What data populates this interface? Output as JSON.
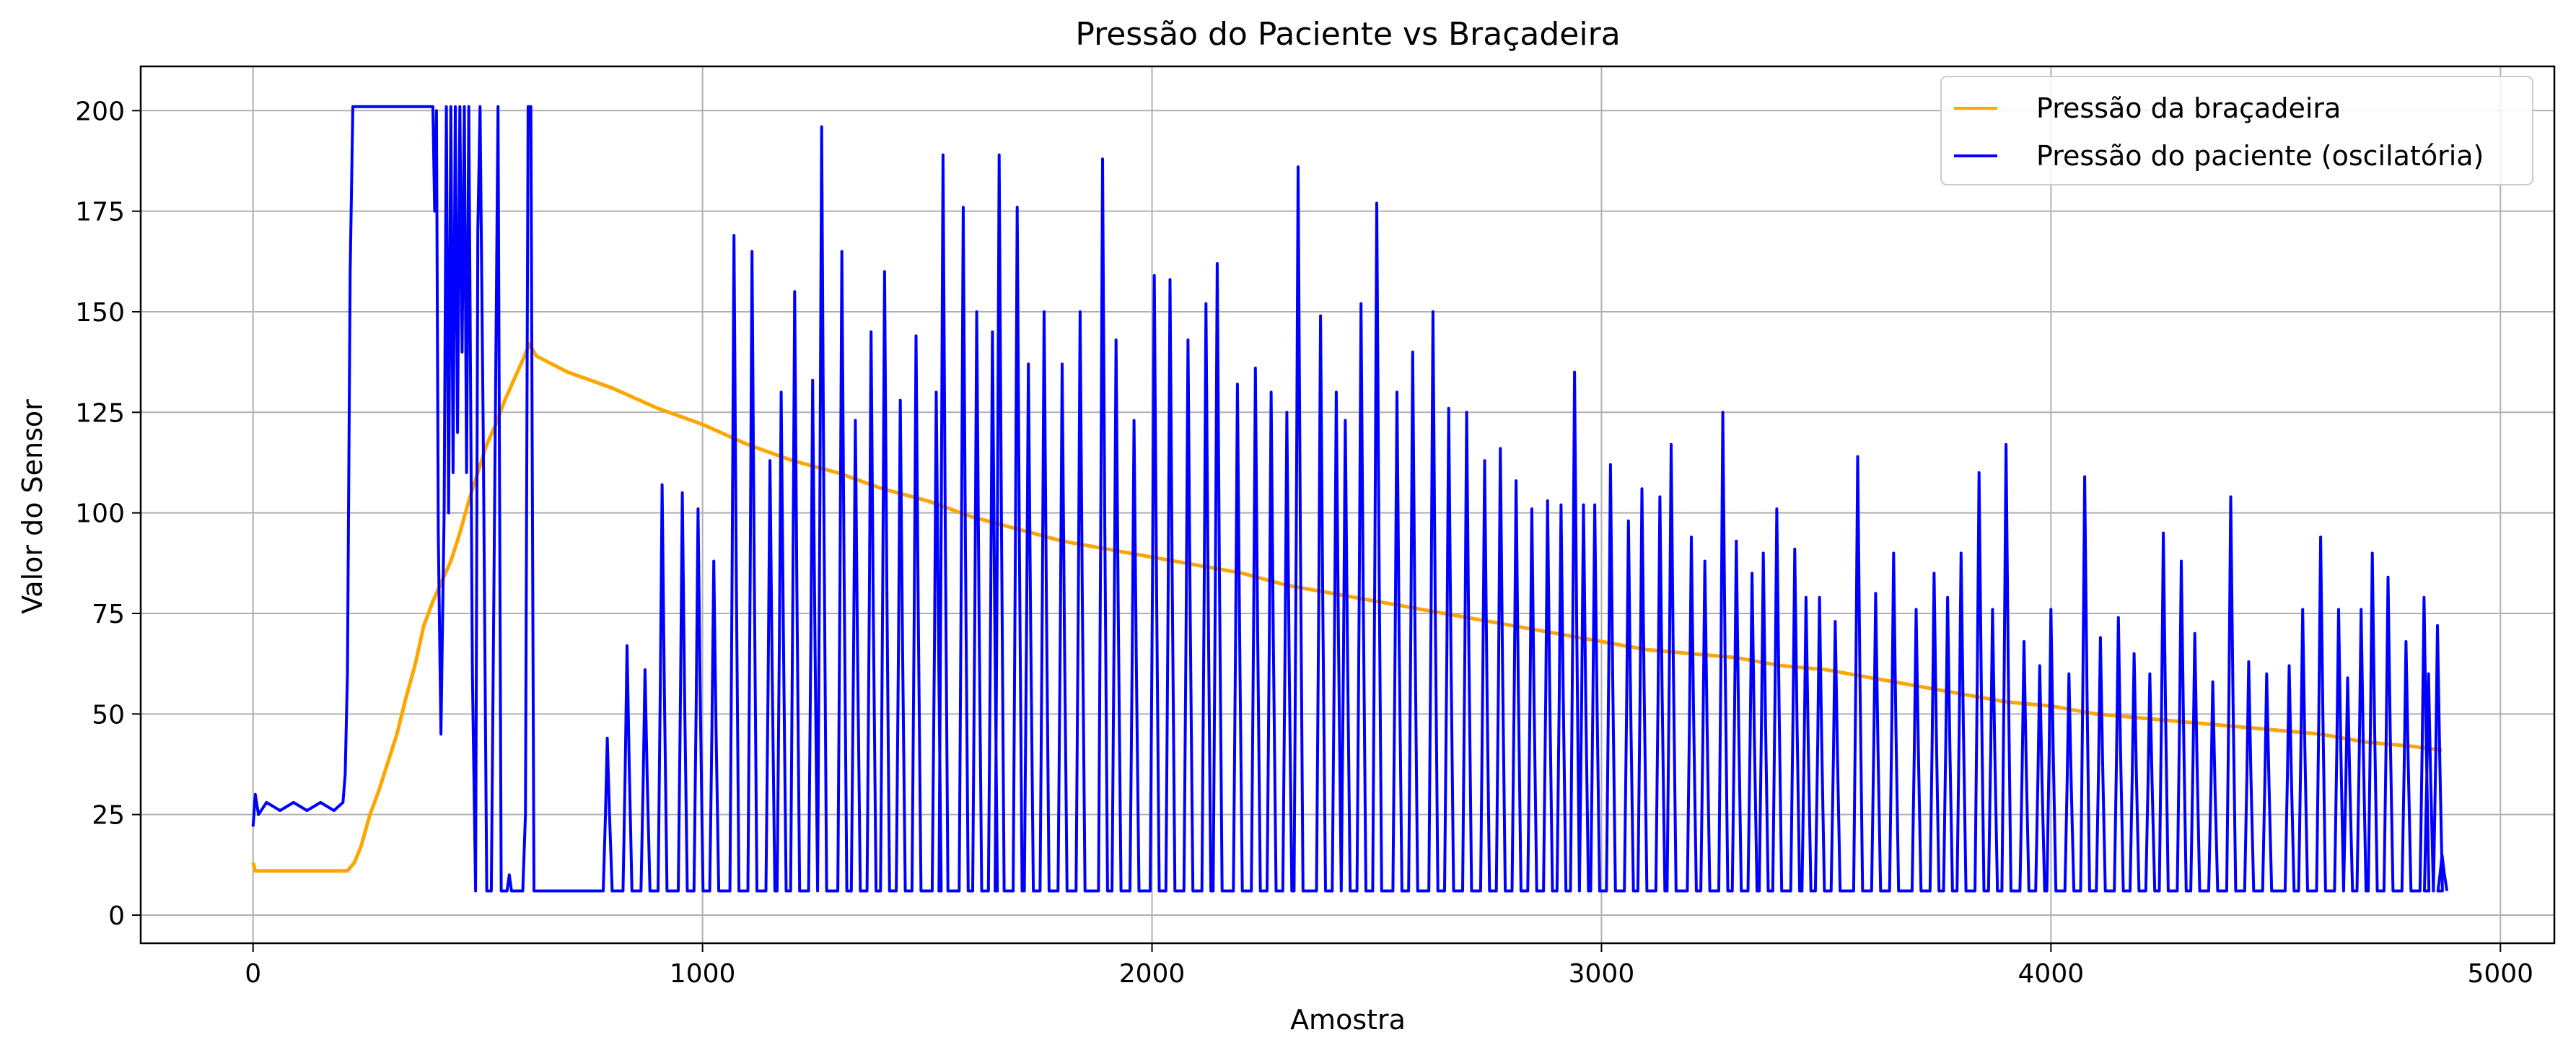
{
  "chart_data": {
    "type": "line",
    "title": "Pressão do Paciente vs Braçadeira",
    "xlabel": "Amostra",
    "ylabel": "Valor do Sensor",
    "xlim": [
      -250,
      5120
    ],
    "ylim": [
      -7,
      211
    ],
    "x_ticks": [
      0,
      1000,
      2000,
      3000,
      4000,
      5000
    ],
    "y_ticks": [
      0,
      25,
      50,
      75,
      100,
      125,
      150,
      175,
      200
    ],
    "grid": true,
    "legend": "top-right",
    "series": [
      {
        "name": "Pressão da braçadeira",
        "color": "#ffa500",
        "points": [
          [
            0,
            13
          ],
          [
            5,
            11
          ],
          [
            210,
            11
          ],
          [
            225,
            13
          ],
          [
            240,
            17
          ],
          [
            260,
            25
          ],
          [
            280,
            31
          ],
          [
            300,
            38
          ],
          [
            320,
            45
          ],
          [
            340,
            54
          ],
          [
            360,
            62
          ],
          [
            380,
            72
          ],
          [
            400,
            78
          ],
          [
            420,
            83
          ],
          [
            440,
            88
          ],
          [
            460,
            95
          ],
          [
            480,
            103
          ],
          [
            500,
            110
          ],
          [
            520,
            117
          ],
          [
            540,
            122
          ],
          [
            560,
            128
          ],
          [
            580,
            133
          ],
          [
            600,
            138
          ],
          [
            615,
            142
          ],
          [
            630,
            139
          ],
          [
            700,
            135
          ],
          [
            800,
            131
          ],
          [
            900,
            126
          ],
          [
            1000,
            122
          ],
          [
            1100,
            117
          ],
          [
            1200,
            113
          ],
          [
            1300,
            110
          ],
          [
            1400,
            106
          ],
          [
            1500,
            103
          ],
          [
            1600,
            99
          ],
          [
            1700,
            96
          ],
          [
            1800,
            93
          ],
          [
            1900,
            91
          ],
          [
            2000,
            89
          ],
          [
            2100,
            87
          ],
          [
            2200,
            85
          ],
          [
            2300,
            82
          ],
          [
            2400,
            80
          ],
          [
            2500,
            78
          ],
          [
            2600,
            76
          ],
          [
            2700,
            74
          ],
          [
            2800,
            72
          ],
          [
            2900,
            70
          ],
          [
            3000,
            68
          ],
          [
            3100,
            66
          ],
          [
            3200,
            65
          ],
          [
            3300,
            64
          ],
          [
            3400,
            62
          ],
          [
            3500,
            61
          ],
          [
            3600,
            59
          ],
          [
            3700,
            57
          ],
          [
            3800,
            55
          ],
          [
            3900,
            53
          ],
          [
            4000,
            52
          ],
          [
            4100,
            50
          ],
          [
            4200,
            49
          ],
          [
            4300,
            48
          ],
          [
            4400,
            47
          ],
          [
            4500,
            46
          ],
          [
            4600,
            45
          ],
          [
            4700,
            43
          ],
          [
            4800,
            42
          ],
          [
            4870,
            41
          ]
        ]
      },
      {
        "name": "Pressão do paciente (oscilatória)",
        "color": "#0000ff",
        "baseline": 6,
        "segments": [
          [
            [
              0,
              22
            ],
            [
              5,
              30
            ],
            [
              12,
              25
            ],
            [
              30,
              28
            ],
            [
              60,
              26
            ],
            [
              90,
              28
            ],
            [
              120,
              26
            ],
            [
              150,
              28
            ],
            [
              180,
              26
            ],
            [
              200,
              28
            ],
            [
              205,
              35
            ],
            [
              210,
              60
            ],
            [
              216,
              160
            ],
            [
              222,
              201
            ],
            [
              400,
              201
            ],
            [
              404,
              175
            ],
            [
              408,
              200
            ],
            [
              412,
              95
            ],
            [
              418,
              45
            ],
            [
              425,
              100
            ],
            [
              430,
              201
            ],
            [
              435,
              100
            ],
            [
              440,
              201
            ],
            [
              445,
              110
            ],
            [
              450,
              201
            ],
            [
              455,
              120
            ],
            [
              460,
              201
            ],
            [
              465,
              140
            ],
            [
              470,
              201
            ],
            [
              475,
              110
            ],
            [
              480,
              201
            ],
            [
              488,
              60
            ],
            [
              495,
              6
            ],
            [
              500,
              170
            ],
            [
              505,
              201
            ],
            [
              512,
              120
            ],
            [
              520,
              6
            ],
            [
              530,
              6
            ],
            [
              545,
              201
            ],
            [
              552,
              6
            ],
            [
              565,
              6
            ],
            [
              570,
              10
            ],
            [
              575,
              6
            ],
            [
              600,
              6
            ],
            [
              606,
              25
            ],
            [
              612,
              201
            ],
            [
              618,
              201
            ],
            [
              625,
              6
            ],
            [
              760,
              6
            ]
          ]
        ],
        "peaks": [
          [
            788,
            44
          ],
          [
            832,
            67
          ],
          [
            872,
            61
          ],
          [
            910,
            107
          ],
          [
            955,
            105
          ],
          [
            990,
            101
          ],
          [
            1025,
            88
          ],
          [
            1070,
            169
          ],
          [
            1110,
            165
          ],
          [
            1150,
            113
          ],
          [
            1175,
            130
          ],
          [
            1205,
            155
          ],
          [
            1245,
            133
          ],
          [
            1265,
            196
          ],
          [
            1310,
            165
          ],
          [
            1340,
            123
          ],
          [
            1375,
            145
          ],
          [
            1405,
            160
          ],
          [
            1440,
            128
          ],
          [
            1475,
            144
          ],
          [
            1520,
            130
          ],
          [
            1535,
            189
          ],
          [
            1580,
            176
          ],
          [
            1610,
            150
          ],
          [
            1645,
            145
          ],
          [
            1660,
            189
          ],
          [
            1700,
            176
          ],
          [
            1725,
            137
          ],
          [
            1760,
            150
          ],
          [
            1800,
            137
          ],
          [
            1840,
            150
          ],
          [
            1890,
            188
          ],
          [
            1920,
            143
          ],
          [
            1960,
            123
          ],
          [
            2005,
            159
          ],
          [
            2040,
            158
          ],
          [
            2080,
            143
          ],
          [
            2120,
            152
          ],
          [
            2145,
            162
          ],
          [
            2190,
            132
          ],
          [
            2230,
            136
          ],
          [
            2265,
            130
          ],
          [
            2300,
            125
          ],
          [
            2325,
            186
          ],
          [
            2375,
            149
          ],
          [
            2410,
            130
          ],
          [
            2430,
            123
          ],
          [
            2465,
            152
          ],
          [
            2500,
            177
          ],
          [
            2545,
            130
          ],
          [
            2580,
            140
          ],
          [
            2625,
            150
          ],
          [
            2660,
            126
          ],
          [
            2700,
            125
          ],
          [
            2740,
            113
          ],
          [
            2775,
            116
          ],
          [
            2810,
            108
          ],
          [
            2845,
            101
          ],
          [
            2880,
            103
          ],
          [
            2910,
            102
          ],
          [
            2940,
            135
          ],
          [
            2960,
            102
          ],
          [
            2985,
            102
          ],
          [
            3020,
            112
          ],
          [
            3060,
            98
          ],
          [
            3090,
            106
          ],
          [
            3130,
            104
          ],
          [
            3155,
            117
          ],
          [
            3200,
            94
          ],
          [
            3230,
            88
          ],
          [
            3270,
            125
          ],
          [
            3300,
            93
          ],
          [
            3335,
            85
          ],
          [
            3360,
            90
          ],
          [
            3390,
            101
          ],
          [
            3430,
            91
          ],
          [
            3455,
            79
          ],
          [
            3485,
            79
          ],
          [
            3520,
            73
          ],
          [
            3570,
            114
          ],
          [
            3610,
            80
          ],
          [
            3650,
            90
          ],
          [
            3700,
            76
          ],
          [
            3740,
            85
          ],
          [
            3770,
            79
          ],
          [
            3800,
            90
          ],
          [
            3840,
            110
          ],
          [
            3870,
            76
          ],
          [
            3900,
            117
          ],
          [
            3940,
            68
          ],
          [
            3975,
            62
          ],
          [
            4000,
            76
          ],
          [
            4040,
            60
          ],
          [
            4075,
            109
          ],
          [
            4110,
            69
          ],
          [
            4150,
            74
          ],
          [
            4185,
            65
          ],
          [
            4220,
            60
          ],
          [
            4250,
            95
          ],
          [
            4290,
            88
          ],
          [
            4320,
            70
          ],
          [
            4360,
            58
          ],
          [
            4400,
            104
          ],
          [
            4440,
            63
          ],
          [
            4480,
            60
          ],
          [
            4530,
            62
          ],
          [
            4560,
            76
          ],
          [
            4600,
            94
          ],
          [
            4640,
            76
          ],
          [
            4660,
            59
          ],
          [
            4690,
            76
          ],
          [
            4715,
            90
          ],
          [
            4750,
            84
          ],
          [
            4790,
            68
          ],
          [
            4830,
            79
          ],
          [
            4840,
            60
          ],
          [
            4860,
            72
          ],
          [
            4870,
            15
          ]
        ]
      }
    ]
  }
}
